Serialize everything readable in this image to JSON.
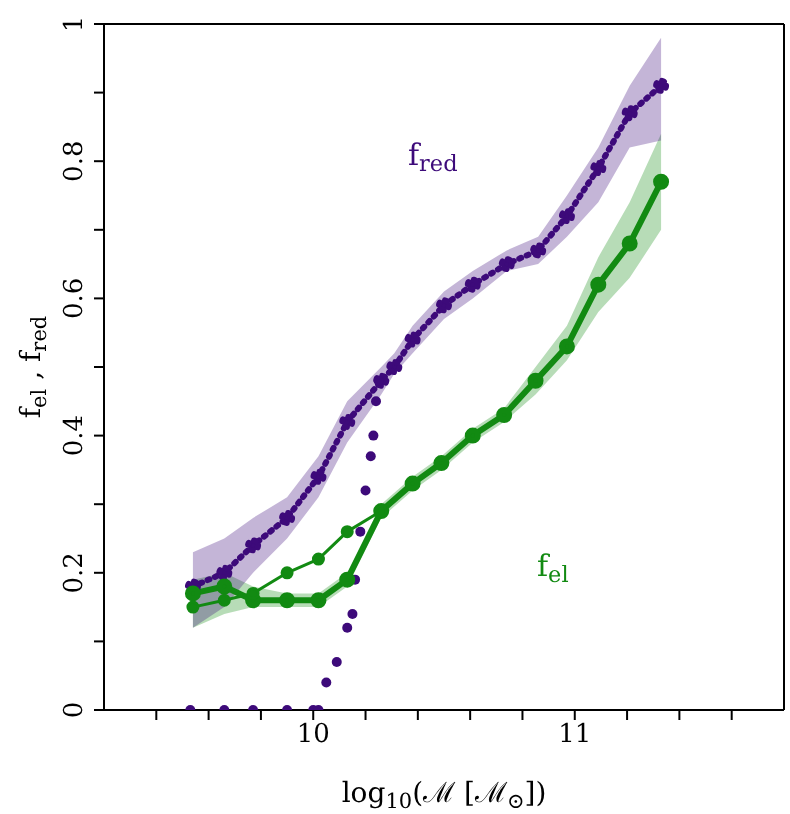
{
  "chart_data": {
    "type": "line",
    "xlabel": "log$_{10}$(ℳ [ℳ$_{⊙}$])",
    "ylabel": "f$_{el}$ , f$_{red}$",
    "xlim": [
      9.2,
      11.8
    ],
    "xticks": [
      {
        "value": 9.4,
        "label": null
      },
      {
        "value": 9.6,
        "label": null
      },
      {
        "value": 9.8,
        "label": null
      },
      10,
      {
        "value": 10.2,
        "label": null
      },
      {
        "value": 10.4,
        "label": null
      },
      {
        "value": 10.6,
        "label": null
      },
      {
        "value": 10.8,
        "label": null
      },
      11,
      {
        "value": 11.2,
        "label": null
      },
      {
        "value": 11.4,
        "label": null
      },
      {
        "value": 11.6,
        "label": null
      }
    ],
    "ylim": [
      0,
      1
    ],
    "yticks": [
      0,
      {
        "value": 0.1,
        "label": null
      },
      0.2,
      {
        "value": 0.3,
        "label": null
      },
      0.4,
      {
        "value": 0.5,
        "label": null
      },
      0.6,
      {
        "value": 0.7,
        "label": null
      },
      0.8,
      {
        "value": 0.9,
        "label": null
      },
      1
    ],
    "grid": false,
    "legend": false,
    "series": [
      {
        "name": "f$_{red}$",
        "color": "#3d0a7a",
        "line_style": "dotted",
        "marker": "circle",
        "x": [
          9.54,
          9.66,
          9.77,
          9.9,
          10.02,
          10.13,
          10.26,
          10.31,
          10.38,
          10.5,
          10.61,
          10.74,
          10.86,
          10.97,
          11.09,
          11.21,
          11.33
        ],
        "values": [
          0.18,
          0.2,
          0.24,
          0.28,
          0.34,
          0.42,
          0.48,
          0.5,
          0.54,
          0.59,
          0.62,
          0.65,
          0.67,
          0.72,
          0.79,
          0.87,
          0.91
        ],
        "lower": [
          0.12,
          0.15,
          0.2,
          0.25,
          0.31,
          0.39,
          0.46,
          0.49,
          0.52,
          0.57,
          0.6,
          0.64,
          0.65,
          0.69,
          0.74,
          0.82,
          0.83
        ],
        "upper": [
          0.23,
          0.25,
          0.28,
          0.31,
          0.37,
          0.45,
          0.5,
          0.52,
          0.56,
          0.61,
          0.64,
          0.67,
          0.69,
          0.75,
          0.82,
          0.91,
          0.98
        ]
      },
      {
        "type": "scatter",
        "color": "#3d0a7a",
        "marker": "circle",
        "x": [
          9.53,
          9.66,
          9.77,
          9.9,
          10.0,
          10.02,
          10.05,
          10.09,
          10.13,
          10.15,
          10.16,
          10.18,
          10.2,
          10.22,
          10.23,
          10.24,
          10.25
        ],
        "values": [
          0,
          0,
          0,
          0,
          0,
          0,
          0.04,
          0.07,
          0.12,
          0.14,
          0.19,
          0.26,
          0.32,
          0.37,
          0.4,
          0.45,
          0.48
        ]
      },
      {
        "name": "f$_{el}$",
        "color": "#128a12",
        "line_style": "solid",
        "marker": "circle",
        "x": [
          9.54,
          9.66,
          9.77,
          9.9,
          10.02,
          10.13,
          10.26,
          10.38,
          10.49,
          10.61,
          10.73,
          10.85,
          10.97,
          11.09,
          11.21,
          11.33
        ],
        "values": [
          0.17,
          0.18,
          0.16,
          0.16,
          0.16,
          0.19,
          0.29,
          0.33,
          0.36,
          0.4,
          0.43,
          0.48,
          0.53,
          0.62,
          0.68,
          0.77
        ],
        "lower": [
          0.12,
          0.14,
          0.15,
          0.15,
          0.15,
          0.18,
          0.28,
          0.32,
          0.35,
          0.39,
          0.42,
          0.46,
          0.51,
          0.58,
          0.63,
          0.7
        ],
        "upper": [
          0.19,
          0.2,
          0.18,
          0.17,
          0.17,
          0.2,
          0.3,
          0.34,
          0.37,
          0.41,
          0.44,
          0.5,
          0.56,
          0.66,
          0.74,
          0.84
        ]
      },
      {
        "color": "#128a12",
        "line_style": "solid",
        "marker": "circle",
        "x": [
          9.54,
          9.66,
          9.77,
          9.9,
          10.02,
          10.13,
          10.26
        ],
        "values": [
          0.15,
          0.16,
          0.17,
          0.2,
          0.22,
          0.26,
          0.29
        ]
      }
    ]
  }
}
